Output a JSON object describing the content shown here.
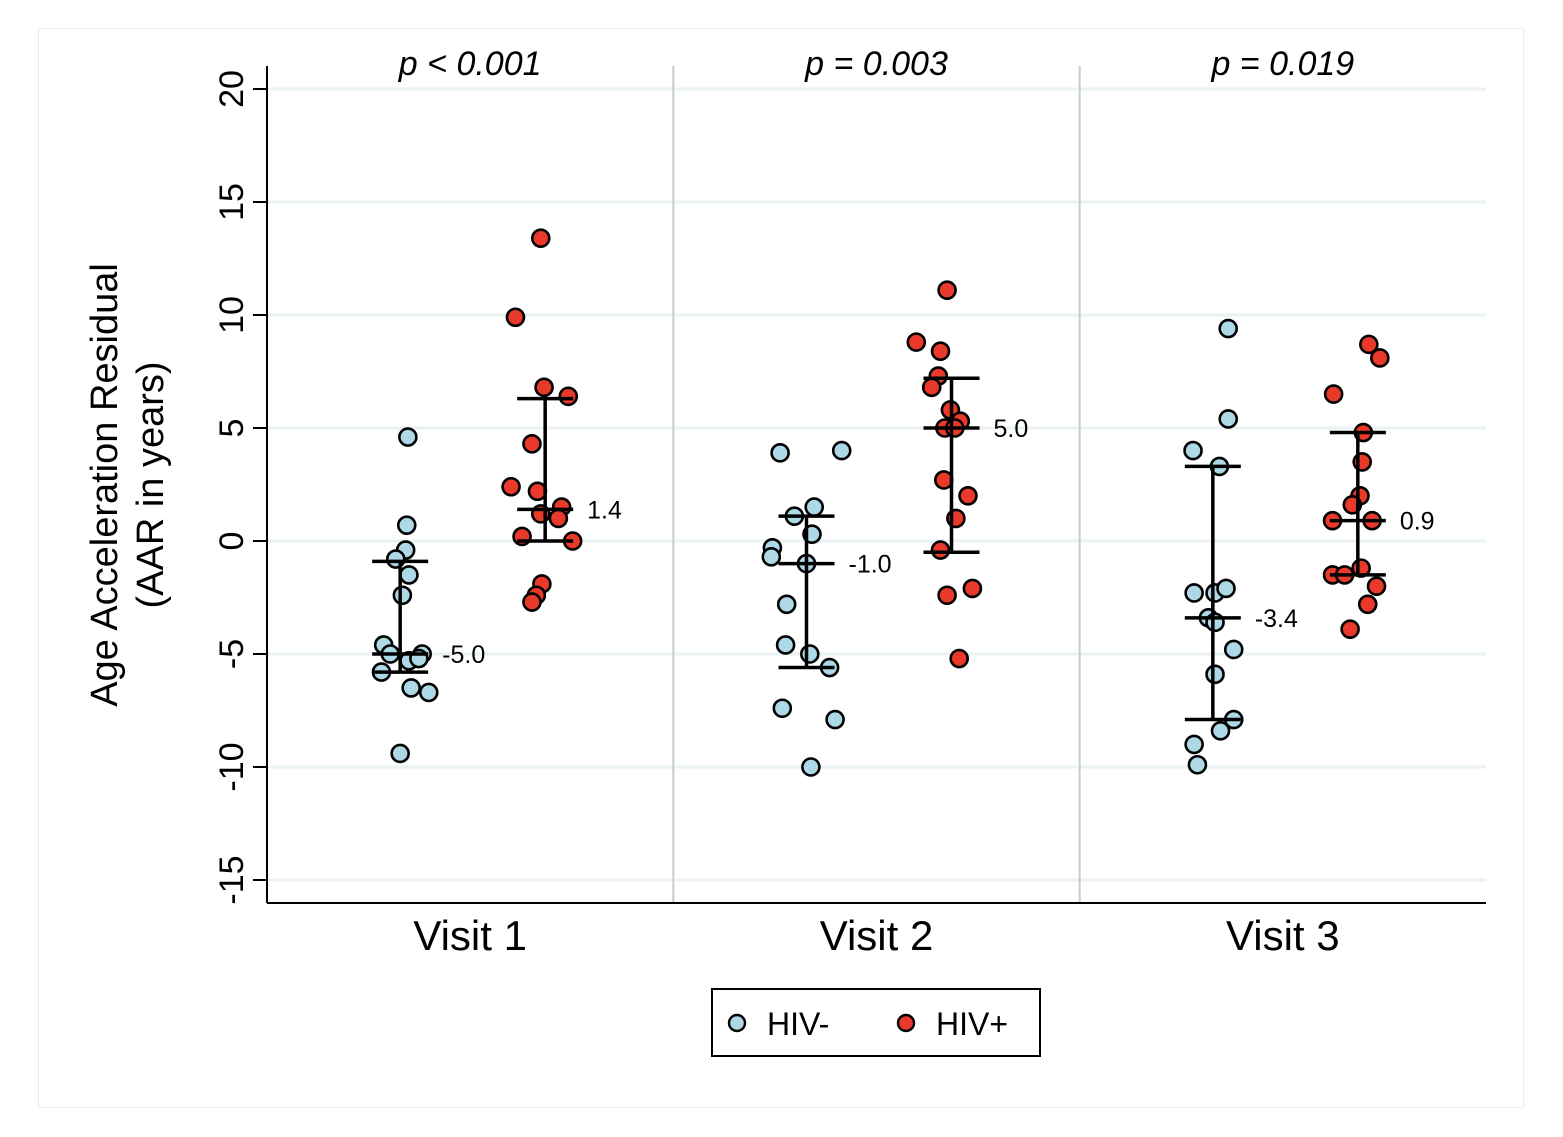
{
  "chart_data": {
    "type": "scatter",
    "title": "",
    "xlabel": "",
    "ylabel": "Age Acceleration Residual",
    "ylabel_line2": "(AAR in years)",
    "ylim": [
      -16,
      21
    ],
    "yticks": [
      20,
      15,
      10,
      5,
      0,
      -5,
      -10,
      -15
    ],
    "ytick_labels": [
      "20",
      "15",
      "10",
      "5",
      "0",
      "-5",
      "-10",
      "-15"
    ],
    "grid": true,
    "categories": [
      "Visit 1",
      "Visit 2",
      "Visit 3"
    ],
    "p_values": [
      "p < 0.001",
      "p = 0.003",
      "p = 0.019"
    ],
    "legend": {
      "placement": "bottom-center",
      "entries": [
        {
          "label": "HIV-",
          "color": "#add8e6"
        },
        {
          "label": "HIV+",
          "color": "#e8392a"
        }
      ]
    },
    "series": [
      {
        "name": "HIV-",
        "color": "#add8e6",
        "groups": [
          {
            "category": "Visit 1",
            "values": [
              4.6,
              0.7,
              -0.4,
              -0.8,
              -1.5,
              -2.4,
              -4.6,
              -5.0,
              -5.3,
              -5.0,
              -5.2,
              -5.8,
              -6.5,
              -6.7,
              -9.4
            ],
            "jitter": [
              0.35,
              0.3,
              0.25,
              -0.2,
              0.4,
              0.1,
              -0.75,
              -0.45,
              0.4,
              1.0,
              0.85,
              -0.85,
              0.5,
              1.3,
              0.0
            ],
            "median": -5.0,
            "median_label": "-5.0",
            "q1": -5.8,
            "q3": -0.9
          },
          {
            "category": "Visit 2",
            "values": [
              3.9,
              4.0,
              1.5,
              1.1,
              0.3,
              -0.3,
              -0.7,
              -1.0,
              -2.8,
              -4.6,
              -5.0,
              -5.6,
              -7.4,
              -7.9,
              -10.0
            ],
            "jitter": [
              -1.2,
              1.6,
              0.35,
              -0.55,
              0.25,
              -1.55,
              -1.6,
              0.0,
              -0.9,
              -0.95,
              0.15,
              1.05,
              -1.1,
              1.3,
              0.2
            ],
            "median": -1.0,
            "median_label": "-1.0",
            "q1": -5.6,
            "q3": 1.1
          },
          {
            "category": "Visit 3",
            "values": [
              9.4,
              5.4,
              4.0,
              3.3,
              -2.3,
              -2.3,
              -2.1,
              -3.4,
              -3.6,
              -4.8,
              -5.9,
              -7.9,
              -8.4,
              -9.0,
              -9.9
            ],
            "jitter": [
              0.7,
              0.7,
              -0.9,
              0.3,
              -0.85,
              0.1,
              0.6,
              -0.2,
              0.1,
              0.95,
              0.1,
              0.95,
              0.35,
              -0.85,
              -0.7
            ],
            "median": -3.4,
            "median_label": "-3.4",
            "q1": -7.9,
            "q3": 3.3
          }
        ]
      },
      {
        "name": "HIV+",
        "color": "#e8392a",
        "groups": [
          {
            "category": "Visit 1",
            "values": [
              13.4,
              9.9,
              6.8,
              6.4,
              4.3,
              2.4,
              2.2,
              1.5,
              1.2,
              1.0,
              0.2,
              0.0,
              -1.9,
              -2.4,
              -2.7
            ],
            "jitter": [
              -0.2,
              -1.35,
              -0.05,
              1.05,
              -0.6,
              -1.55,
              -0.35,
              0.75,
              -0.2,
              0.6,
              -1.05,
              1.25,
              -0.15,
              -0.4,
              -0.6
            ],
            "median": 1.4,
            "median_label": "1.4",
            "q1": 0.0,
            "q3": 6.3
          },
          {
            "category": "Visit 2",
            "values": [
              11.1,
              8.8,
              8.4,
              7.3,
              6.8,
              5.8,
              5.3,
              5.0,
              5.0,
              2.7,
              2.0,
              1.0,
              -0.4,
              -2.4,
              -2.1,
              -5.2
            ],
            "jitter": [
              -0.2,
              -1.6,
              -0.5,
              -0.6,
              -0.9,
              -0.05,
              0.4,
              -0.3,
              0.15,
              -0.35,
              0.75,
              0.2,
              -0.5,
              -0.2,
              0.95,
              0.35
            ],
            "median": 5.0,
            "median_label": "5.0",
            "q1": -0.5,
            "q3": 7.2
          },
          {
            "category": "Visit 3",
            "values": [
              8.7,
              8.1,
              6.5,
              4.8,
              3.5,
              2.0,
              1.6,
              0.9,
              0.9,
              -1.2,
              -1.5,
              -1.5,
              -2.0,
              -2.8,
              -3.9
            ],
            "jitter": [
              0.5,
              1.0,
              -1.1,
              0.25,
              0.2,
              0.1,
              -0.25,
              -1.15,
              0.65,
              0.15,
              -1.15,
              -0.6,
              0.85,
              0.45,
              -0.35
            ],
            "median": 0.9,
            "median_label": "0.9",
            "q1": -1.5,
            "q3": 4.8
          }
        ]
      }
    ]
  }
}
